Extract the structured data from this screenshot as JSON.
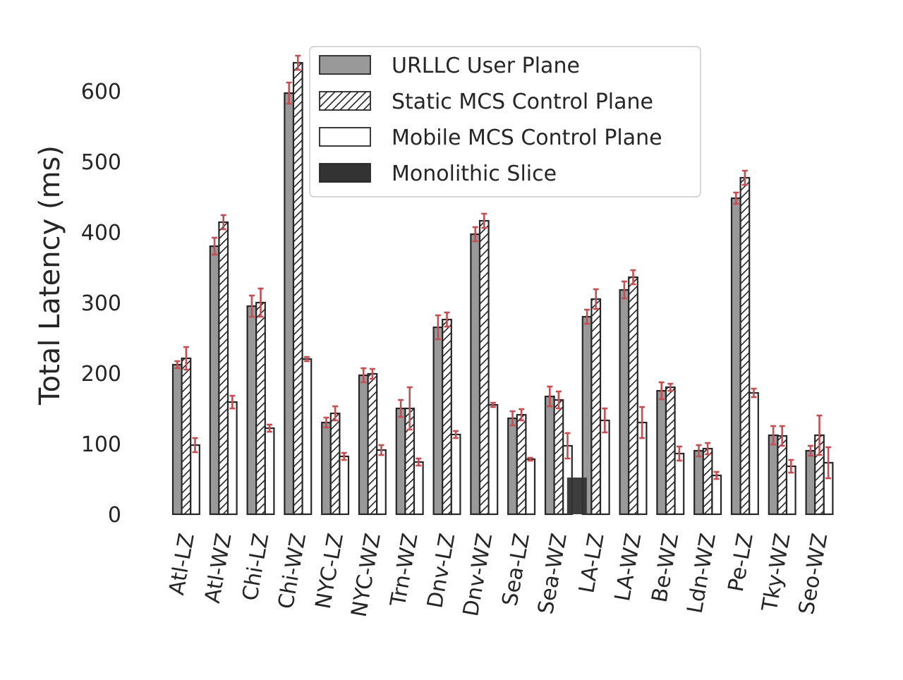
{
  "chart_data": {
    "type": "bar",
    "title": "",
    "xlabel": "",
    "ylabel": "Total Latency (ms)",
    "ylim": [
      0,
      650
    ],
    "yticks": [
      0,
      100,
      200,
      300,
      400,
      500,
      600
    ],
    "grid": false,
    "legend_position": "top-center",
    "categories": [
      "Atl-LZ",
      "Atl-WZ",
      "Chi-LZ",
      "Chi-WZ",
      "NYC-LZ",
      "NYC-WZ",
      "Trn-WZ",
      "Dnv-LZ",
      "Dnv-WZ",
      "Sea-LZ",
      "Sea-WZ",
      "LA-LZ",
      "LA-WZ",
      "Be-WZ",
      "Ldn-WZ",
      "Pe-LZ",
      "Tky-WZ",
      "Seo-WZ"
    ],
    "series": [
      {
        "name": "URLLC User Plane",
        "style": "gray",
        "color": "#999999",
        "values": [
          212,
          380,
          295,
          597,
          130,
          197,
          150,
          265,
          397,
          136,
          167,
          280,
          318,
          175,
          90,
          448,
          112,
          90
        ],
        "errors": [
          5,
          12,
          15,
          15,
          7,
          10,
          12,
          17,
          10,
          10,
          14,
          10,
          12,
          12,
          8,
          8,
          13,
          7
        ]
      },
      {
        "name": "Static MCS Control Plane",
        "style": "hatch",
        "color": "#ffffff",
        "values": [
          221,
          414,
          300,
          640,
          143,
          199,
          150,
          276,
          416,
          141,
          162,
          305,
          336,
          180,
          93,
          477,
          111,
          112
        ],
        "errors": [
          16,
          10,
          20,
          10,
          10,
          7,
          30,
          10,
          10,
          8,
          12,
          14,
          10,
          5,
          8,
          10,
          14,
          28
        ]
      },
      {
        "name": "Mobile MCS Control Plane",
        "style": "white",
        "color": "#ffffff",
        "values": [
          98,
          159,
          122,
          220,
          82,
          91,
          74,
          113,
          155,
          78,
          97,
          133,
          130,
          86,
          55,
          172,
          68,
          73
        ],
        "errors": [
          10,
          9,
          5,
          3,
          5,
          7,
          5,
          5,
          3,
          2,
          18,
          17,
          22,
          10,
          5,
          6,
          9,
          22
        ]
      },
      {
        "name": "Monolithic Slice",
        "style": "dark",
        "color": "#333333",
        "values": [
          null,
          null,
          null,
          null,
          null,
          null,
          null,
          null,
          null,
          null,
          null,
          52,
          null,
          null,
          null,
          null,
          null,
          null
        ],
        "errors": [
          null,
          null,
          null,
          null,
          null,
          null,
          null,
          null,
          null,
          null,
          null,
          null,
          null,
          null,
          null,
          null,
          null,
          null
        ]
      }
    ],
    "colors": {
      "errorbar": "#c44e52",
      "edge": "#262626"
    }
  }
}
